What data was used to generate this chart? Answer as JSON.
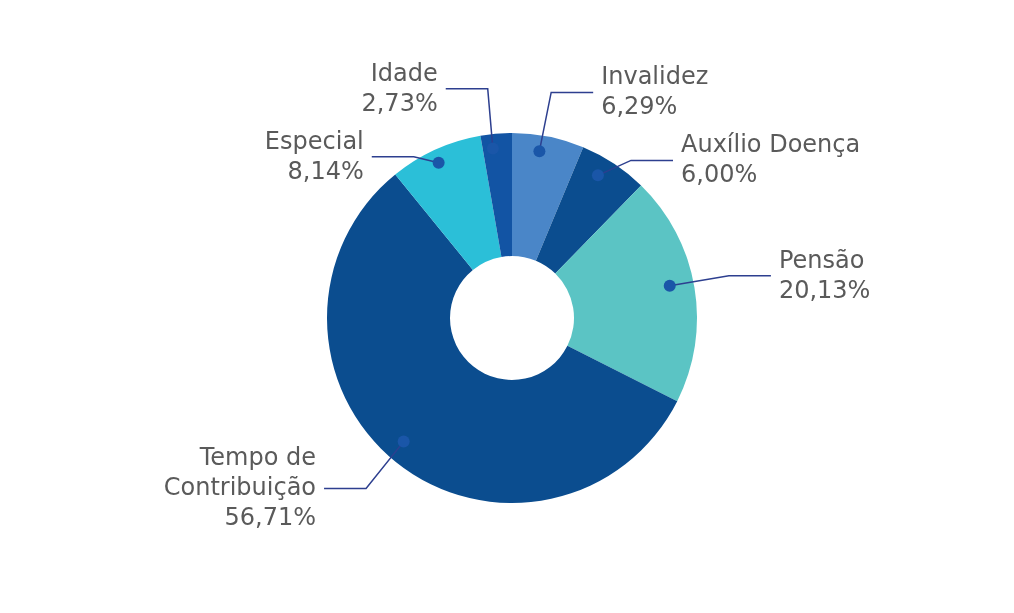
{
  "chart_data": {
    "type": "donut",
    "categories": [
      "Invalidez",
      "Auxílio Doença",
      "Pensão",
      "Tempo de Contribuição",
      "Especial",
      "Idade"
    ],
    "values": [
      6.29,
      6.0,
      20.13,
      56.71,
      8.14,
      2.73
    ],
    "value_labels": [
      "6,29%",
      "6,00%",
      "20,13%",
      "56,71%",
      "8,14%",
      "2,73%"
    ],
    "colors": [
      "#4a86c8",
      "#0b4d8f",
      "#5bc4c4",
      "#0b4d8f",
      "#2bbfd8",
      "#1254a4"
    ],
    "legend": false
  }
}
